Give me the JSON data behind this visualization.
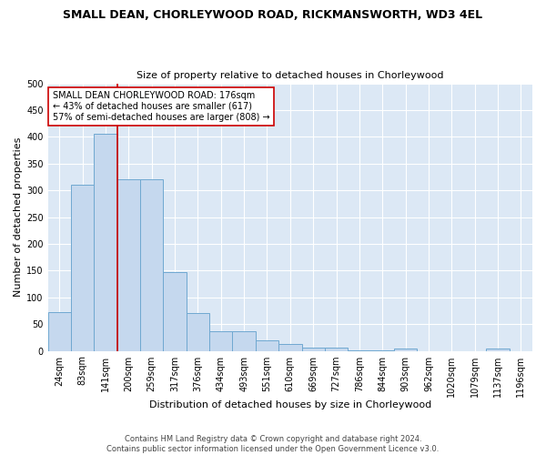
{
  "title": "SMALL DEAN, CHORLEYWOOD ROAD, RICKMANSWORTH, WD3 4EL",
  "subtitle": "Size of property relative to detached houses in Chorleywood",
  "xlabel": "Distribution of detached houses by size in Chorleywood",
  "ylabel": "Number of detached properties",
  "categories": [
    "24sqm",
    "83sqm",
    "141sqm",
    "200sqm",
    "259sqm",
    "317sqm",
    "376sqm",
    "434sqm",
    "493sqm",
    "551sqm",
    "610sqm",
    "669sqm",
    "727sqm",
    "786sqm",
    "844sqm",
    "903sqm",
    "962sqm",
    "1020sqm",
    "1079sqm",
    "1137sqm",
    "1196sqm"
  ],
  "values": [
    72,
    310,
    405,
    320,
    320,
    148,
    70,
    36,
    36,
    20,
    13,
    6,
    6,
    1,
    1,
    5,
    0,
    0,
    0,
    5,
    0
  ],
  "bar_color": "#c5d8ee",
  "bar_edge_color": "#6fa8d0",
  "vline_x_index": 2.5,
  "vline_color": "#cc0000",
  "annotation_text": "SMALL DEAN CHORLEYWOOD ROAD: 176sqm\n← 43% of detached houses are smaller (617)\n57% of semi-detached houses are larger (808) →",
  "annotation_box_color": "#ffffff",
  "annotation_box_edge_color": "#cc0000",
  "fig_bg_color": "#ffffff",
  "plot_bg_color": "#dce8f5",
  "grid_color": "#ffffff",
  "footer": "Contains HM Land Registry data © Crown copyright and database right 2024.\nContains public sector information licensed under the Open Government Licence v3.0.",
  "ylim": [
    0,
    500
  ],
  "yticks": [
    0,
    50,
    100,
    150,
    200,
    250,
    300,
    350,
    400,
    450,
    500
  ],
  "title_fontsize": 9,
  "subtitle_fontsize": 8,
  "xlabel_fontsize": 8,
  "ylabel_fontsize": 8,
  "tick_fontsize": 7,
  "annotation_fontsize": 7,
  "footer_fontsize": 6
}
